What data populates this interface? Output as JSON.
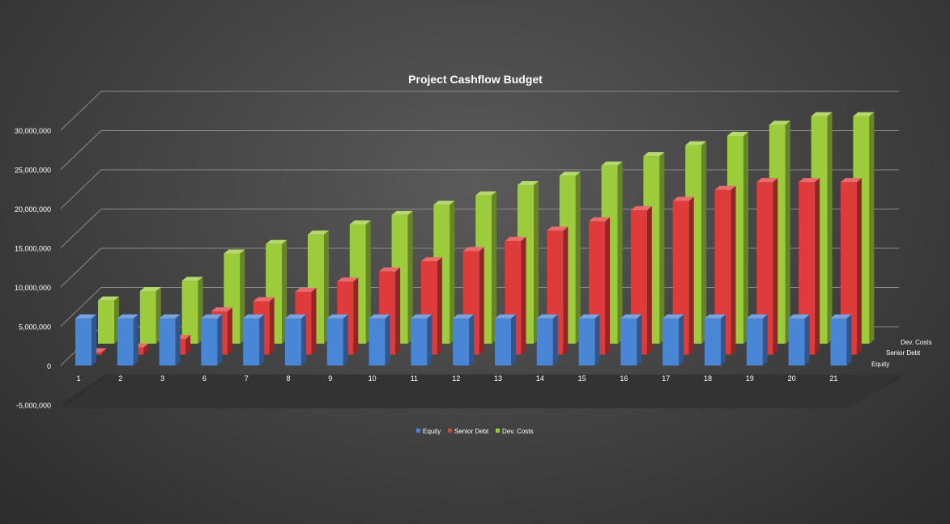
{
  "chart_data": {
    "type": "bar",
    "title": "Project Cashflow Budget",
    "categories": [
      "1",
      "2",
      "3",
      "6",
      "7",
      "8",
      "9",
      "10",
      "11",
      "12",
      "13",
      "14",
      "15",
      "16",
      "17",
      "18",
      "19",
      "20",
      "21"
    ],
    "y_ticks": [
      "-5,000,000",
      "0",
      "5,000,000",
      "10,000,000",
      "15,000,000",
      "20,000,000",
      "25,000,000",
      "30,000,000"
    ],
    "ylim": [
      -5000000,
      30000000
    ],
    "grid": true,
    "legend_position": "bottom",
    "series": [
      {
        "name": "Equity",
        "color": "#4a86d6",
        "values": [
          6000000,
          6000000,
          6000000,
          6000000,
          6000000,
          6000000,
          6000000,
          6000000,
          6000000,
          6000000,
          6000000,
          6000000,
          6000000,
          6000000,
          6000000,
          6000000,
          6000000,
          6000000,
          6000000
        ]
      },
      {
        "name": "Senior Debt",
        "color": "#e03b3b",
        "values": [
          300000,
          900000,
          2000000,
          5500000,
          6800000,
          8000000,
          9300000,
          10600000,
          11900000,
          13200000,
          14500000,
          15800000,
          17000000,
          18400000,
          19600000,
          21000000,
          22000000,
          22000000,
          22000000
        ]
      },
      {
        "name": "Dev. Costs",
        "color": "#9ccc3c",
        "values": [
          5500000,
          6700000,
          8000000,
          11500000,
          12700000,
          13900000,
          15200000,
          16400000,
          17700000,
          18900000,
          20200000,
          21400000,
          22700000,
          23900000,
          25300000,
          26500000,
          27900000,
          29000000,
          29000000
        ]
      }
    ]
  }
}
